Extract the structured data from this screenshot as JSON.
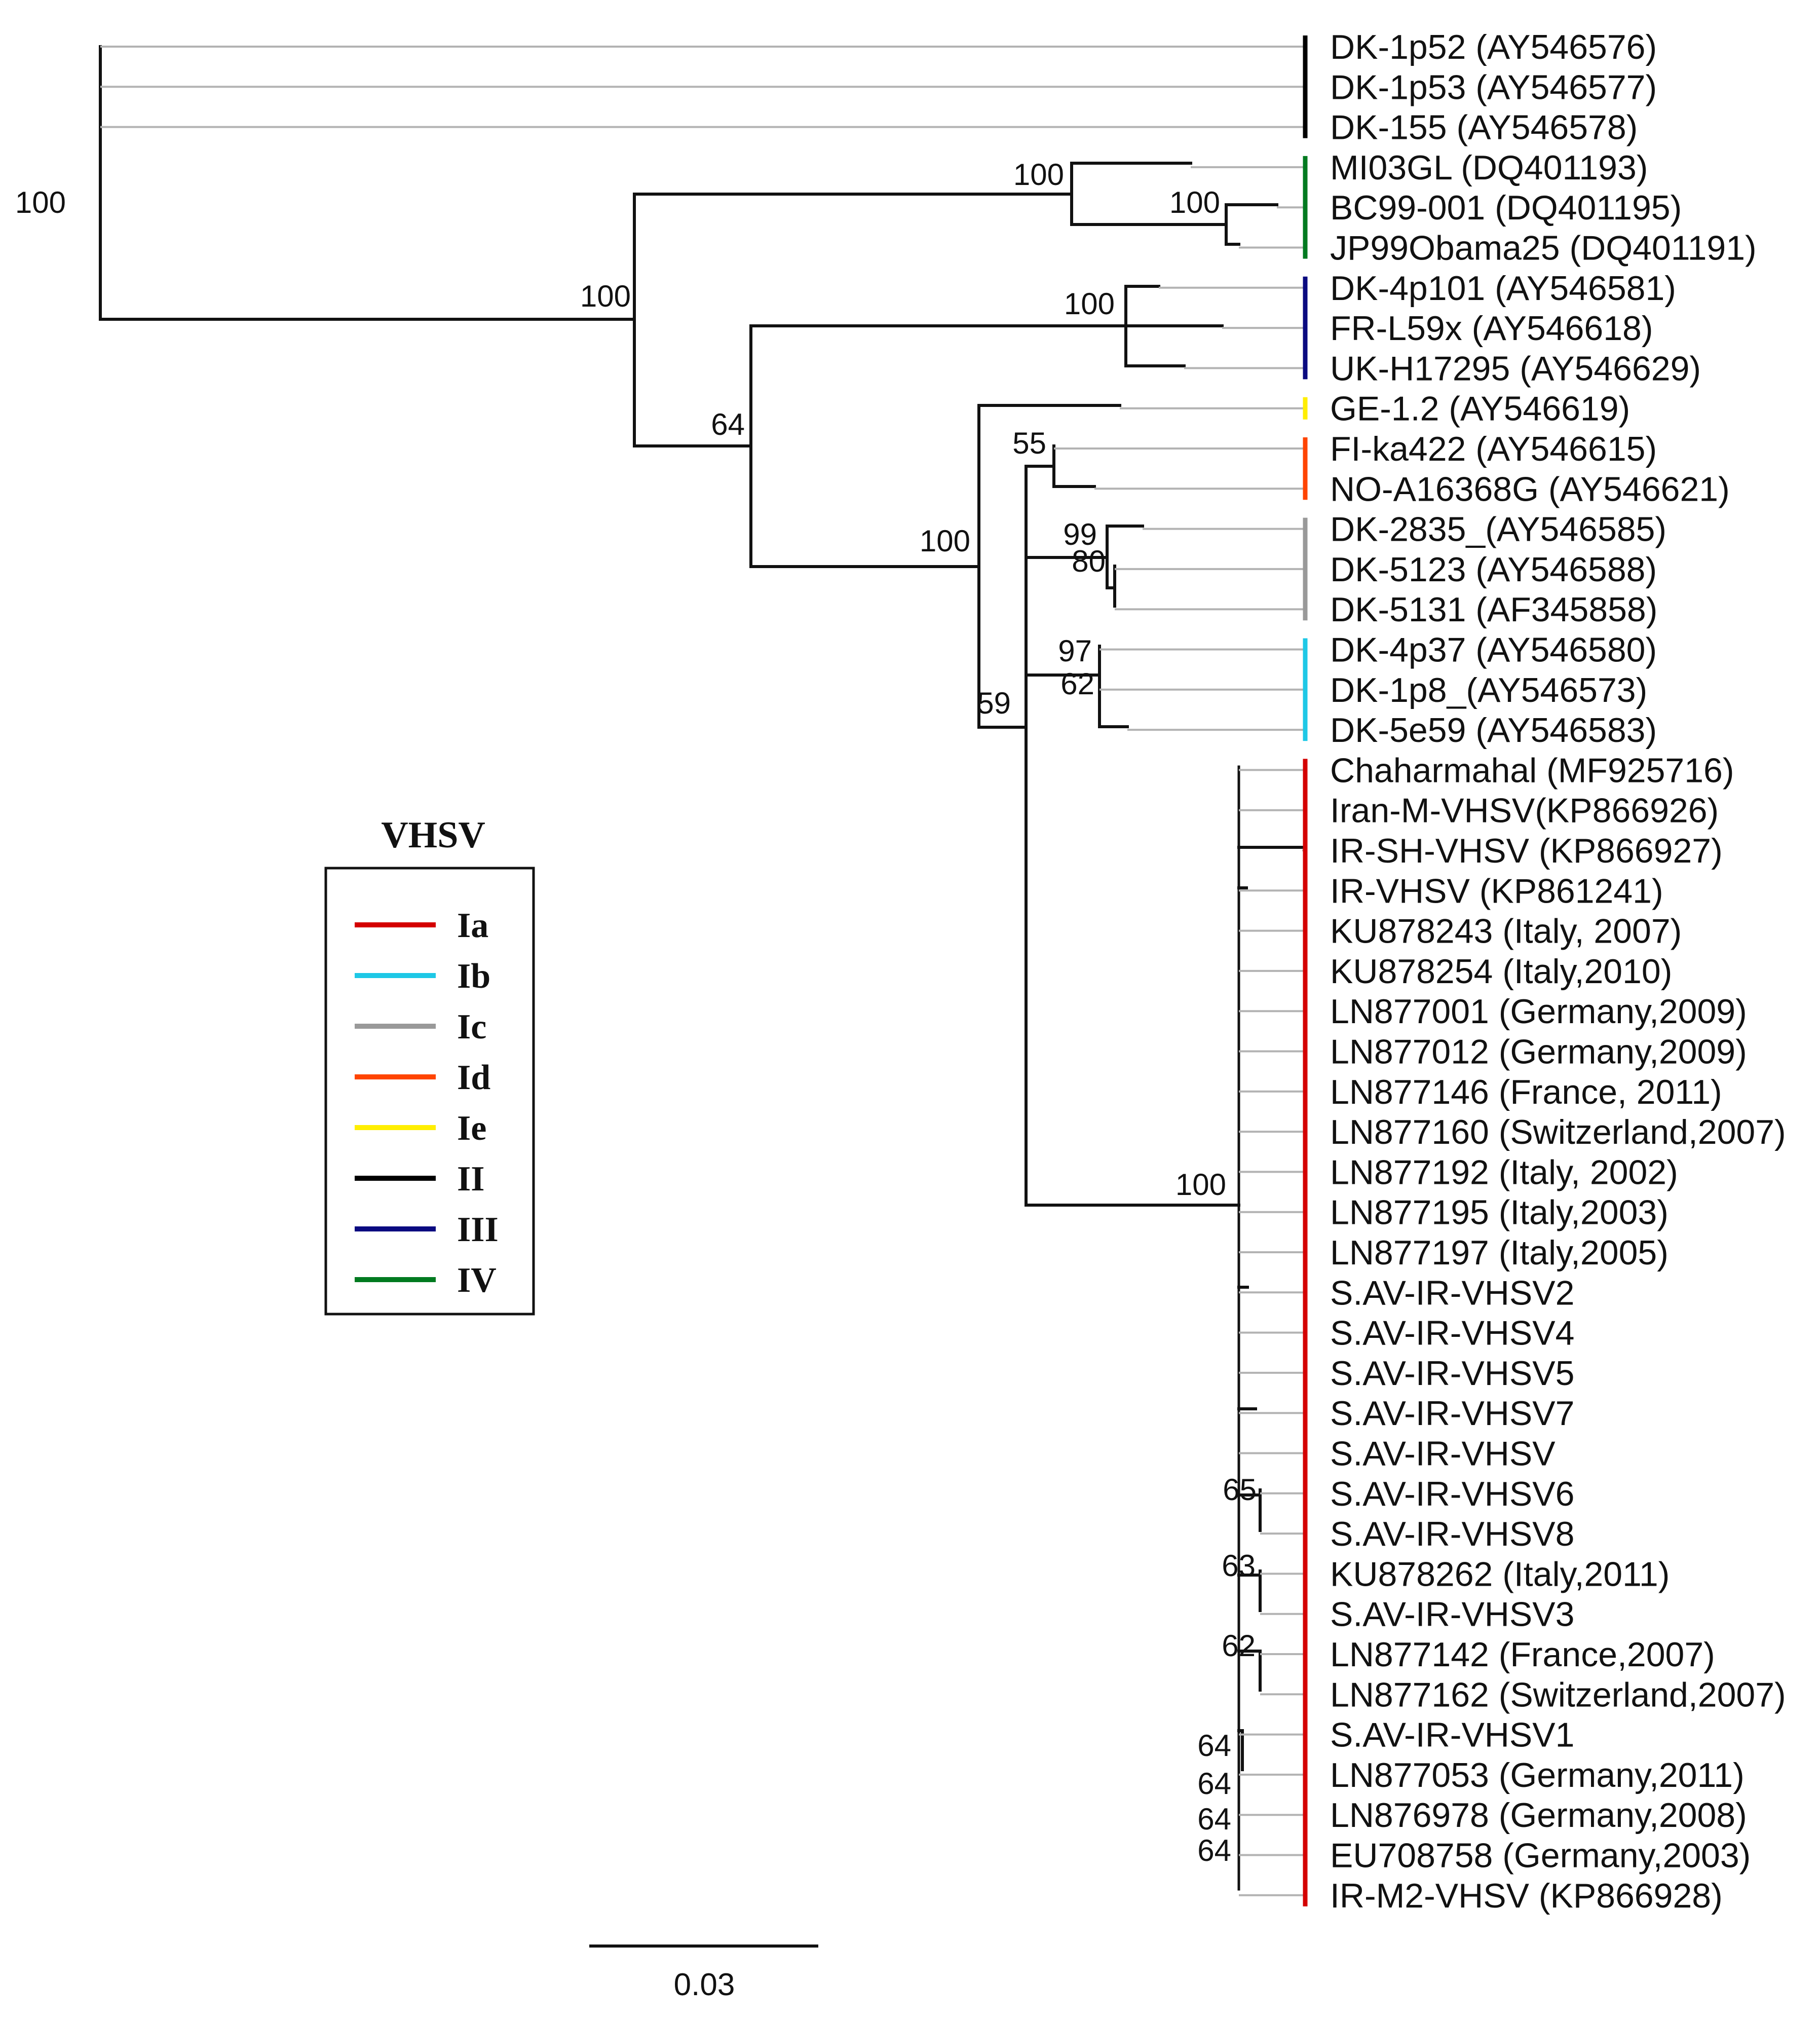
{
  "figure": {
    "scale_bar_label": "0.03",
    "legend": {
      "title": "VHSV",
      "items": [
        {
          "label": "Ia",
          "color": "#d40000"
        },
        {
          "label": "Ib",
          "color": "#1ec8e6"
        },
        {
          "label": "Ic",
          "color": "#999999"
        },
        {
          "label": "Id",
          "color": "#ff4400"
        },
        {
          "label": "Ie",
          "color": "#ffee00"
        },
        {
          "label": "II",
          "color": "#000000"
        },
        {
          "label": "III",
          "color": "#0a0a80"
        },
        {
          "label": "IV",
          "color": "#007a20"
        }
      ]
    },
    "taxa": [
      "DK-1p52 (AY546576)",
      "DK-1p53 (AY546577)",
      "DK-155 (AY546578)",
      "MI03GL (DQ401193)",
      "BC99-001 (DQ401195)",
      "JP99Obama25 (DQ401191)",
      "DK-4p101 (AY546581)",
      "FR-L59x (AY546618)",
      "UK-H17295 (AY546629)",
      "GE-1.2 (AY546619)",
      "FI-ka422 (AY546615)",
      "NO-A16368G (AY546621)",
      "DK-2835_(AY546585)",
      "DK-5123 (AY546588)",
      "DK-5131 (AF345858)",
      "DK-4p37 (AY546580)",
      "DK-1p8_(AY546573)",
      "DK-5e59 (AY546583)",
      "Chaharmahal (MF925716)",
      "Iran-M-VHSV(KP866926)",
      "IR-SH-VHSV (KP866927)",
      "IR-VHSV (KP861241)",
      "KU878243 (Italy, 2007)",
      "KU878254 (Italy,2010)",
      "LN877001 (Germany,2009)",
      "LN877012 (Germany,2009)",
      "LN877146 (France, 2011)",
      "LN877160 (Switzerland,2007)",
      "LN877192 (Italy, 2002)",
      "LN877195 (Italy,2003)",
      "LN877197 (Italy,2005)",
      "S.AV-IR-VHSV2",
      "S.AV-IR-VHSV4",
      "S.AV-IR-VHSV5",
      "S.AV-IR-VHSV7",
      "S.AV-IR-VHSV",
      "S.AV-IR-VHSV6",
      "S.AV-IR-VHSV8",
      "KU878262 (Italy,2011)",
      "S.AV-IR-VHSV3",
      "LN877142 (France,2007)",
      "LN877162 (Switzerland,2007)",
      "S.AV-IR-VHSV1",
      "LN877053 (Germany,2011)",
      "LN876978 (Germany,2008)",
      "EU708758 (Germany,2003)",
      "IR-M2-VHSV (KP866928)"
    ],
    "bootstrap_values": [
      "100",
      "100",
      "100",
      "100",
      "100",
      "64",
      "55",
      "100",
      "99",
      "80",
      "97",
      "62",
      "59",
      "100",
      "65",
      "63",
      "62",
      "64",
      "64",
      "64",
      "64"
    ],
    "genogroup_bars": [
      {
        "genogroup": "II",
        "from_taxon": 0,
        "to_taxon": 2
      },
      {
        "genogroup": "IV",
        "from_taxon": 3,
        "to_taxon": 5
      },
      {
        "genogroup": "III",
        "from_taxon": 6,
        "to_taxon": 8
      },
      {
        "genogroup": "Ie",
        "from_taxon": 9,
        "to_taxon": 9
      },
      {
        "genogroup": "Id",
        "from_taxon": 10,
        "to_taxon": 11
      },
      {
        "genogroup": "Ic",
        "from_taxon": 12,
        "to_taxon": 14
      },
      {
        "genogroup": "Ib",
        "from_taxon": 15,
        "to_taxon": 17
      },
      {
        "genogroup": "Ia",
        "from_taxon": 18,
        "to_taxon": 46
      }
    ]
  }
}
